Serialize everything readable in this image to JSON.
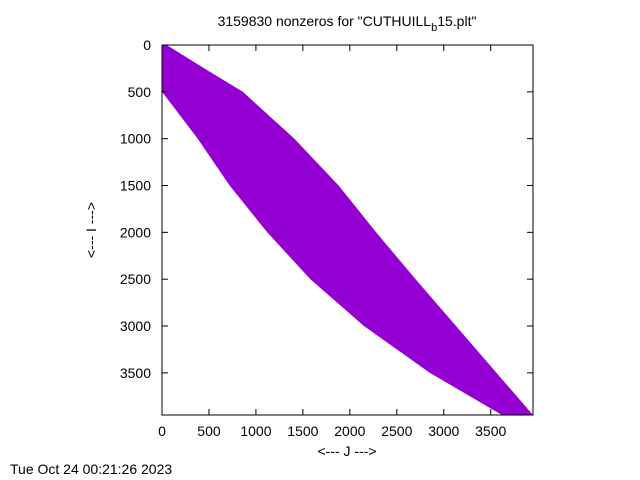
{
  "chart_data": {
    "type": "scatter",
    "title_main": "3159830 nonzeros for \"CUTHUILL",
    "title_sub": "b",
    "title_tail": "15.plt\"",
    "xlabel": "<--- J --->",
    "ylabel": "<--- I --->",
    "xlim": [
      0,
      3950
    ],
    "ylim": [
      3950,
      0
    ],
    "x_ticks": [
      0,
      500,
      1000,
      1500,
      2000,
      2500,
      3000,
      3500
    ],
    "y_ticks": [
      0,
      500,
      1000,
      1500,
      2000,
      2500,
      3000,
      3500
    ],
    "fill_color": "#9400d3",
    "band_rows": [
      0,
      250,
      500,
      1000,
      1500,
      2000,
      2500,
      3000,
      3500,
      3950
    ],
    "band_lower_j": [
      0,
      0,
      0,
      380,
      720,
      1120,
      1580,
      2150,
      2850,
      3620
    ],
    "band_upper_j": [
      50,
      450,
      860,
      1410,
      1880,
      2280,
      2700,
      3130,
      3560,
      3950
    ]
  },
  "timestamp": "Tue Oct 24 00:21:26 2023"
}
